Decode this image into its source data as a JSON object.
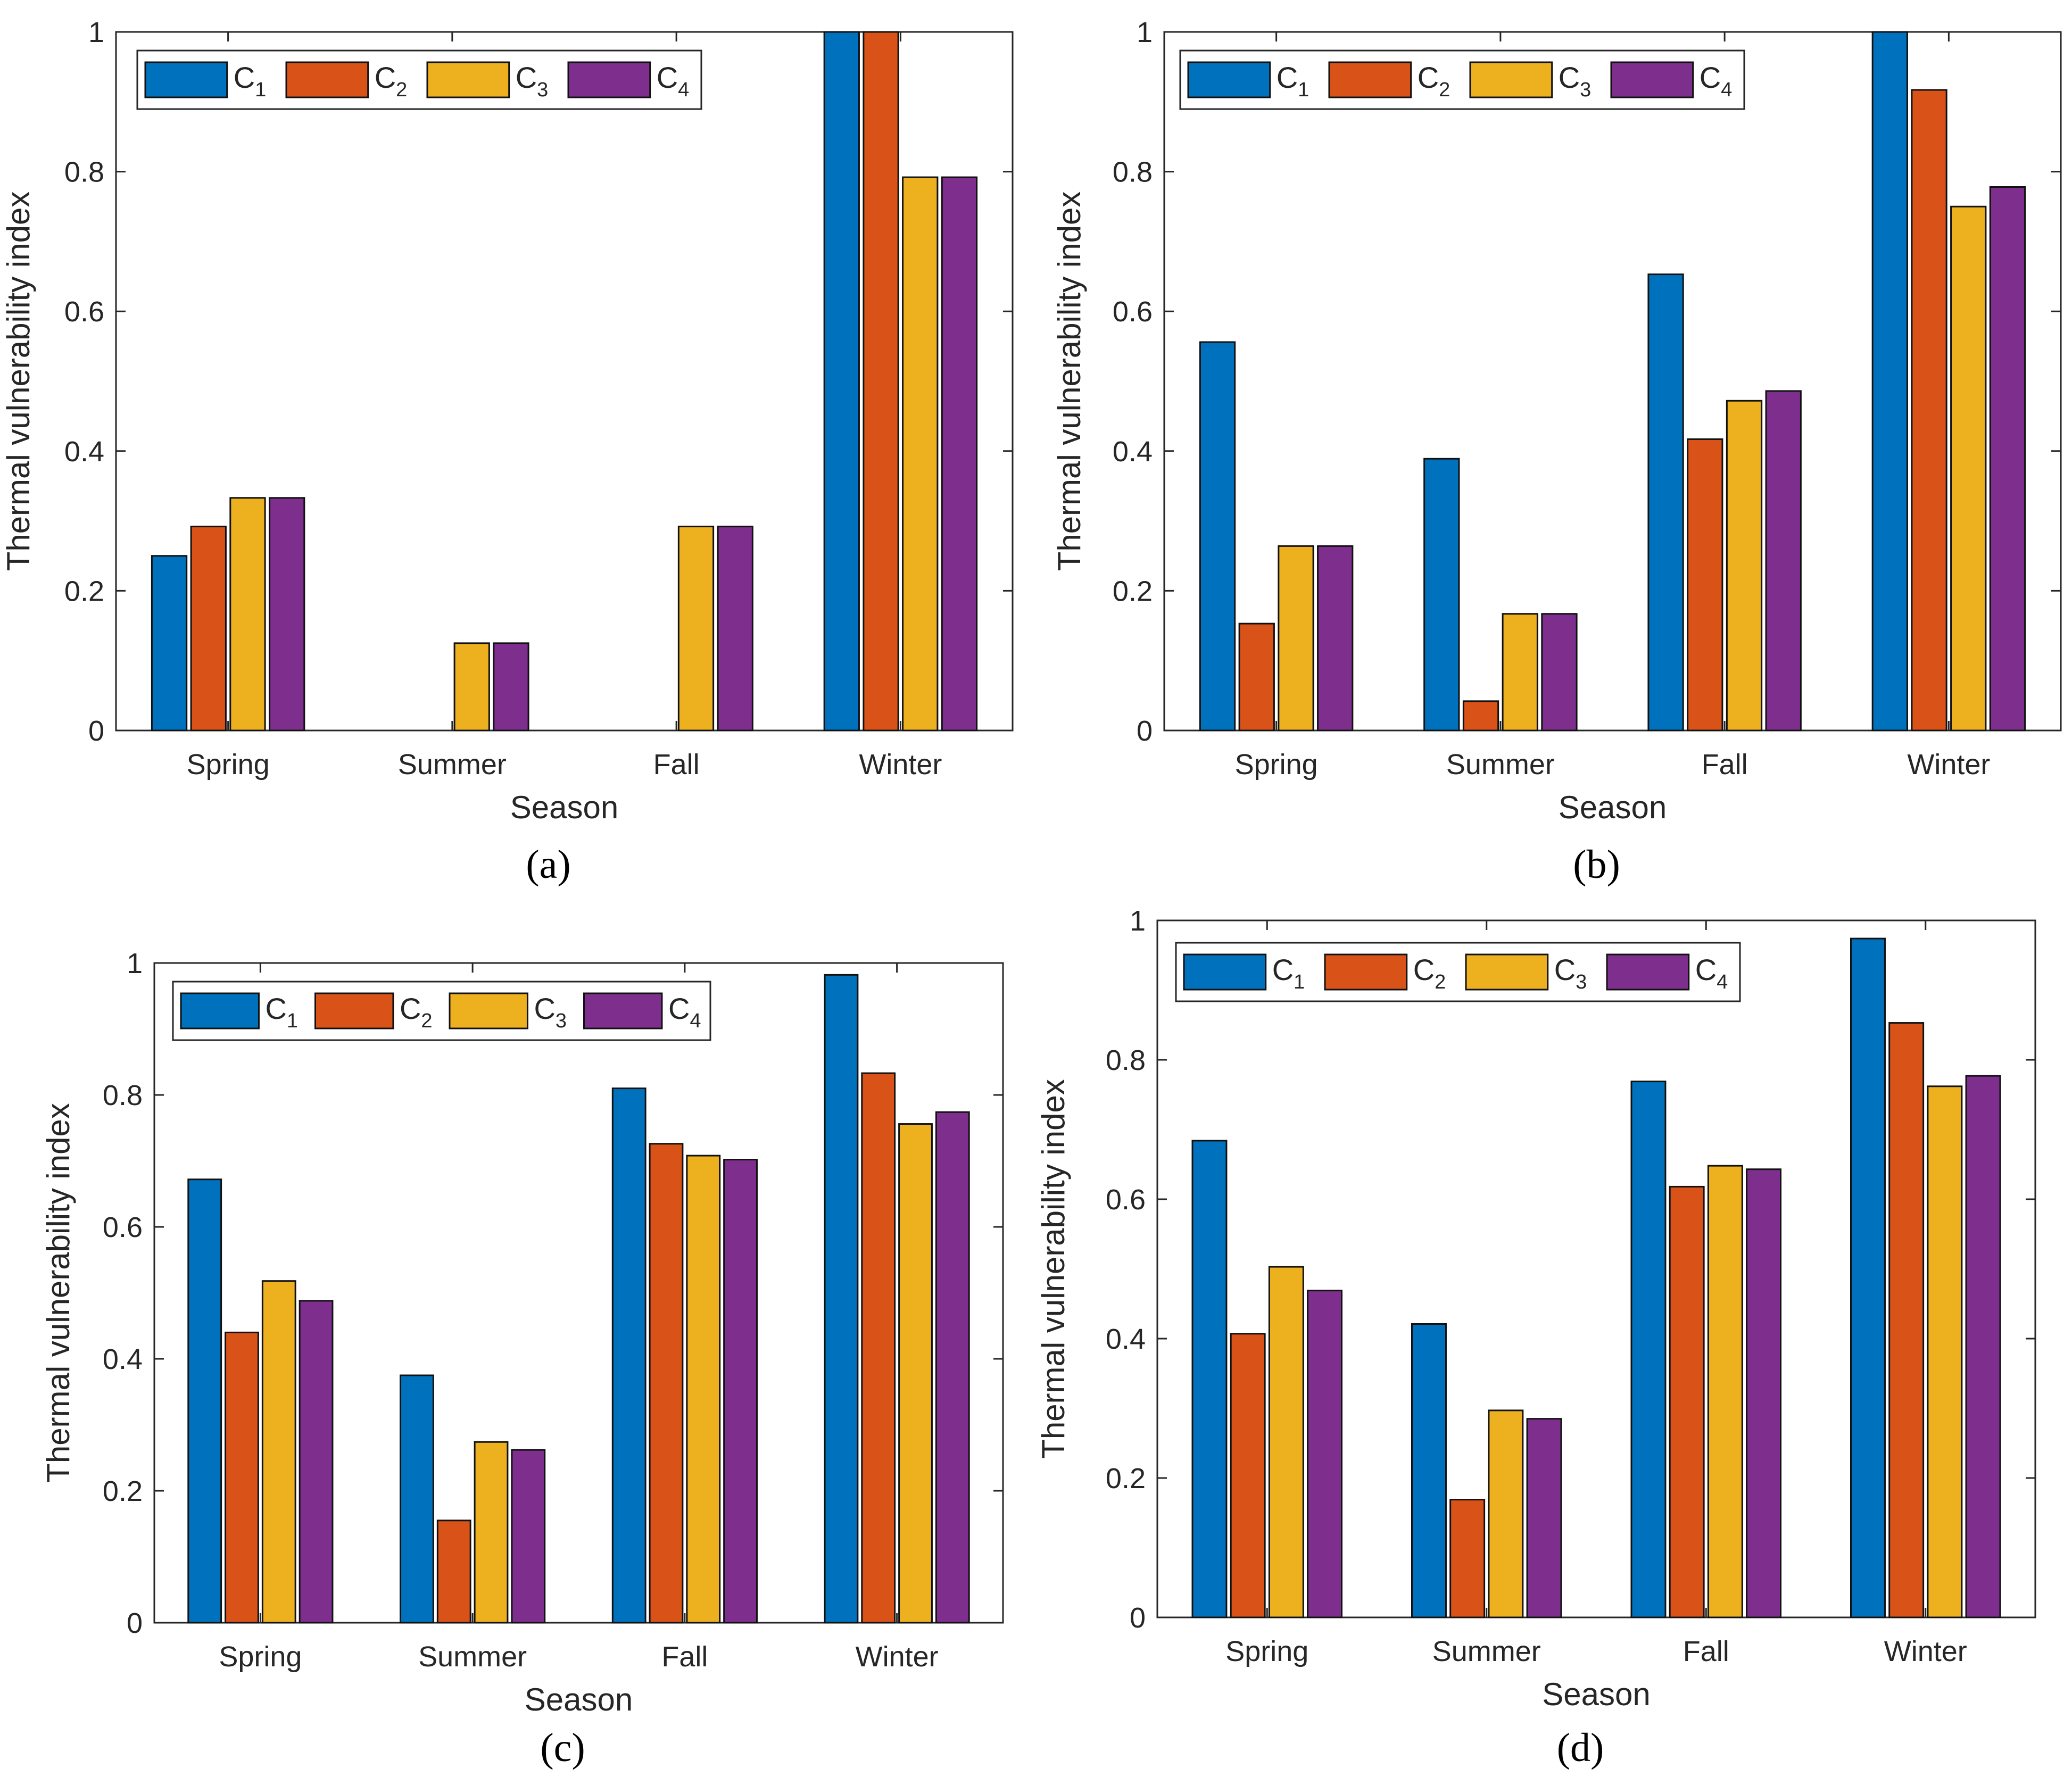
{
  "chart_data": [
    {
      "type": "bar",
      "panel_label": "(a)",
      "categories": [
        "Spring",
        "Summer",
        "Fall",
        "Winter"
      ],
      "xlabel": "Season",
      "ylabel": "Thermal vulnerability index",
      "ylim": [
        0,
        1
      ],
      "yticks": [
        "0",
        "0.2",
        "0.4",
        "0.6",
        "0.8",
        "1"
      ],
      "legend_position": "top-left",
      "series": [
        {
          "name": "C1",
          "values": [
            0.25,
            0.0,
            0.0,
            1.0
          ]
        },
        {
          "name": "C2",
          "values": [
            0.292,
            0.0,
            0.0,
            1.0
          ]
        },
        {
          "name": "C3",
          "values": [
            0.333,
            0.125,
            0.292,
            0.792
          ]
        },
        {
          "name": "C4",
          "values": [
            0.333,
            0.125,
            0.292,
            0.792
          ]
        }
      ]
    },
    {
      "type": "bar",
      "panel_label": "(b)",
      "categories": [
        "Spring",
        "Summer",
        "Fall",
        "Winter"
      ],
      "xlabel": "Season",
      "ylabel": "Thermal vulnerability index",
      "ylim": [
        0,
        1
      ],
      "yticks": [
        "0",
        "0.2",
        "0.4",
        "0.6",
        "0.8",
        "1"
      ],
      "legend_position": "top-left",
      "series": [
        {
          "name": "C1",
          "values": [
            0.556,
            0.389,
            0.653,
            1.0
          ]
        },
        {
          "name": "C2",
          "values": [
            0.153,
            0.042,
            0.417,
            0.917
          ]
        },
        {
          "name": "C3",
          "values": [
            0.264,
            0.167,
            0.472,
            0.75
          ]
        },
        {
          "name": "C4",
          "values": [
            0.264,
            0.167,
            0.486,
            0.778
          ]
        }
      ]
    },
    {
      "type": "bar",
      "panel_label": "(c)",
      "categories": [
        "Spring",
        "Summer",
        "Fall",
        "Winter"
      ],
      "xlabel": "Season",
      "ylabel": "Thermal vulnerability index",
      "ylim": [
        0,
        1
      ],
      "yticks": [
        "0",
        "0.2",
        "0.4",
        "0.6",
        "0.8",
        "1"
      ],
      "legend_position": "top-left",
      "series": [
        {
          "name": "C1",
          "values": [
            0.672,
            0.375,
            0.81,
            0.982
          ]
        },
        {
          "name": "C2",
          "values": [
            0.44,
            0.155,
            0.726,
            0.833
          ]
        },
        {
          "name": "C3",
          "values": [
            0.518,
            0.274,
            0.708,
            0.756
          ]
        },
        {
          "name": "C4",
          "values": [
            0.488,
            0.262,
            0.702,
            0.774
          ]
        }
      ]
    },
    {
      "type": "bar",
      "panel_label": "(d)",
      "categories": [
        "Spring",
        "Summer",
        "Fall",
        "Winter"
      ],
      "xlabel": "Season",
      "ylabel": "Thermal vulnerability index",
      "ylim": [
        0,
        1
      ],
      "yticks": [
        "0",
        "0.2",
        "0.4",
        "0.6",
        "0.8",
        "1"
      ],
      "legend_position": "top-left",
      "series": [
        {
          "name": "C1",
          "values": [
            0.684,
            0.421,
            0.769,
            0.974
          ]
        },
        {
          "name": "C2",
          "values": [
            0.407,
            0.169,
            0.618,
            0.853
          ]
        },
        {
          "name": "C3",
          "values": [
            0.503,
            0.297,
            0.648,
            0.762
          ]
        },
        {
          "name": "C4",
          "values": [
            0.469,
            0.285,
            0.643,
            0.777
          ]
        }
      ]
    }
  ],
  "colors": {
    "C1": "#0072BD",
    "C2": "#D95319",
    "C3": "#EDB120",
    "C4": "#7E2F8E"
  }
}
